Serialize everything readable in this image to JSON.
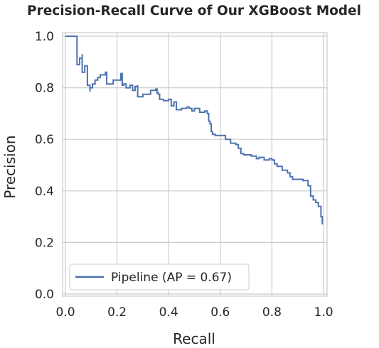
{
  "chart_data": {
    "type": "line",
    "title": "Precision-Recall Curve of Our XGBoost Model",
    "xlabel": "Recall",
    "ylabel": "Precision",
    "xlim": [
      0.0,
      1.0
    ],
    "ylim": [
      0.0,
      1.0
    ],
    "x_ticks": [
      "0.0",
      "0.2",
      "0.4",
      "0.6",
      "0.8",
      "1.0"
    ],
    "y_ticks": [
      "0.0",
      "0.2",
      "0.4",
      "0.6",
      "0.8",
      "1.0"
    ],
    "grid": true,
    "legend_position": "lower-left",
    "series": [
      {
        "name": "Pipeline (AP = 0.67)",
        "color": "#4c72b0",
        "x": [
          0.0,
          0.045,
          0.045,
          0.055,
          0.065,
          0.065,
          0.075,
          0.085,
          0.085,
          0.095,
          0.095,
          0.105,
          0.115,
          0.125,
          0.135,
          0.155,
          0.16,
          0.185,
          0.215,
          0.22,
          0.225,
          0.235,
          0.25,
          0.26,
          0.27,
          0.28,
          0.28,
          0.3,
          0.33,
          0.35,
          0.355,
          0.36,
          0.365,
          0.38,
          0.4,
          0.41,
          0.42,
          0.43,
          0.435,
          0.45,
          0.47,
          0.48,
          0.49,
          0.5,
          0.52,
          0.54,
          0.55,
          0.555,
          0.56,
          0.565,
          0.57,
          0.58,
          0.6,
          0.62,
          0.63,
          0.64,
          0.66,
          0.67,
          0.68,
          0.69,
          0.7,
          0.72,
          0.74,
          0.75,
          0.77,
          0.79,
          0.8,
          0.81,
          0.82,
          0.84,
          0.86,
          0.87,
          0.88,
          0.9,
          0.92,
          0.935,
          0.94,
          0.95,
          0.96,
          0.97,
          0.98,
          0.99,
          0.99,
          0.995
        ],
        "y": [
          1.0,
          1.0,
          0.89,
          0.915,
          0.93,
          0.86,
          0.885,
          0.86,
          0.81,
          0.785,
          0.8,
          0.815,
          0.83,
          0.84,
          0.85,
          0.86,
          0.815,
          0.83,
          0.855,
          0.81,
          0.815,
          0.8,
          0.81,
          0.79,
          0.805,
          0.81,
          0.765,
          0.775,
          0.79,
          0.795,
          0.78,
          0.775,
          0.755,
          0.75,
          0.755,
          0.73,
          0.745,
          0.715,
          0.715,
          0.72,
          0.725,
          0.72,
          0.71,
          0.72,
          0.705,
          0.71,
          0.7,
          0.67,
          0.66,
          0.63,
          0.62,
          0.615,
          0.615,
          0.6,
          0.6,
          0.585,
          0.58,
          0.565,
          0.545,
          0.54,
          0.54,
          0.535,
          0.525,
          0.53,
          0.52,
          0.525,
          0.52,
          0.505,
          0.495,
          0.48,
          0.47,
          0.455,
          0.445,
          0.445,
          0.44,
          0.44,
          0.42,
          0.38,
          0.365,
          0.355,
          0.34,
          0.33,
          0.3,
          0.27
        ]
      }
    ]
  }
}
